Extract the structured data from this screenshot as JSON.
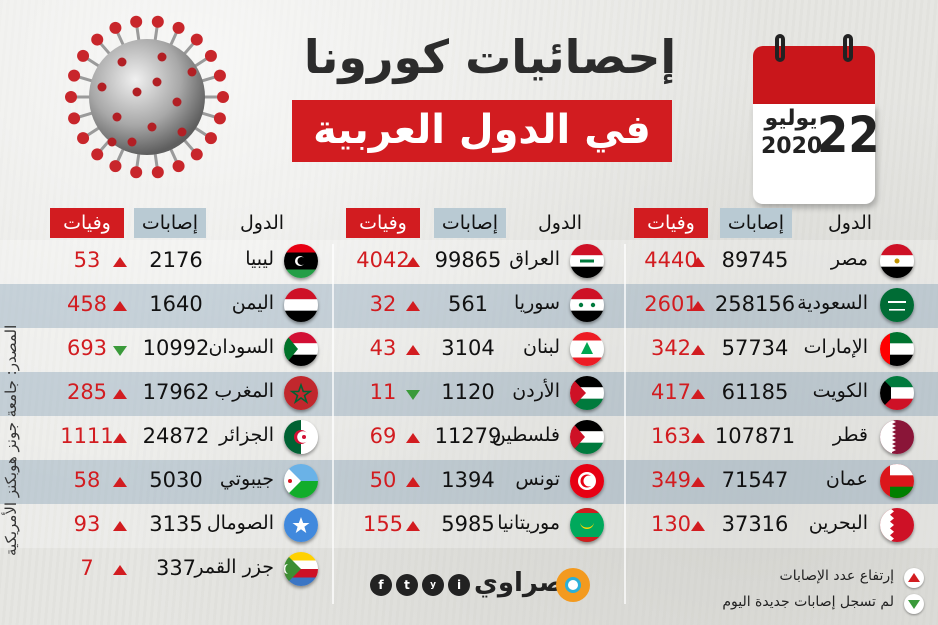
{
  "title_line1": "إحصائيات كورونا",
  "title_line2": "في الدول العربية",
  "calendar": {
    "day": "22",
    "month": "يوليو",
    "year": "2020"
  },
  "headers": {
    "country": "الدول",
    "cases": "إصابات",
    "deaths": "وفيات"
  },
  "source": "المصدر: جامعة جونز هوبكنز الأمريكية",
  "legend": {
    "up": "إرتفاع عدد الإصابات",
    "down": "لم تسجل إصابات جديدة اليوم"
  },
  "brand": {
    "name": "مصراوي",
    "social": [
      "f",
      "t",
      "y",
      "i"
    ]
  },
  "colors": {
    "accent": "#d21c20",
    "up": "#d21c20",
    "down": "#3a9a3a"
  },
  "columns": [
    [
      {
        "name": "مصر",
        "cases": "89745",
        "deaths": "4440",
        "trend": "up",
        "flag": "egypt"
      },
      {
        "name": "السعودية",
        "cases": "258156",
        "deaths": "2601",
        "trend": "up",
        "flag": "saudi"
      },
      {
        "name": "الإمارات",
        "cases": "57734",
        "deaths": "342",
        "trend": "up",
        "flag": "uae"
      },
      {
        "name": "الكويت",
        "cases": "61185",
        "deaths": "417",
        "trend": "up",
        "flag": "kuwait"
      },
      {
        "name": "قطر",
        "cases": "107871",
        "deaths": "163",
        "trend": "up",
        "flag": "qatar"
      },
      {
        "name": "عمان",
        "cases": "71547",
        "deaths": "349",
        "trend": "up",
        "flag": "oman"
      },
      {
        "name": "البحرين",
        "cases": "37316",
        "deaths": "130",
        "trend": "up",
        "flag": "bahrain"
      }
    ],
    [
      {
        "name": "العراق",
        "cases": "99865",
        "deaths": "4042",
        "trend": "up",
        "flag": "iraq"
      },
      {
        "name": "سوريا",
        "cases": "561",
        "deaths": "32",
        "trend": "up",
        "flag": "syria"
      },
      {
        "name": "لبنان",
        "cases": "3104",
        "deaths": "43",
        "trend": "up",
        "flag": "lebanon"
      },
      {
        "name": "الأردن",
        "cases": "1120",
        "deaths": "11",
        "trend": "down",
        "flag": "jordan"
      },
      {
        "name": "فلسطين",
        "cases": "11279",
        "deaths": "69",
        "trend": "up",
        "flag": "palestine"
      },
      {
        "name": "تونس",
        "cases": "1394",
        "deaths": "50",
        "trend": "up",
        "flag": "tunisia"
      },
      {
        "name": "موريتانيا",
        "cases": "5985",
        "deaths": "155",
        "trend": "up",
        "flag": "mauritania"
      }
    ],
    [
      {
        "name": "ليبيا",
        "cases": "2176",
        "deaths": "53",
        "trend": "up",
        "flag": "libya"
      },
      {
        "name": "اليمن",
        "cases": "1640",
        "deaths": "458",
        "trend": "up",
        "flag": "yemen"
      },
      {
        "name": "السودان",
        "cases": "10992",
        "deaths": "693",
        "trend": "down",
        "flag": "sudan"
      },
      {
        "name": "المغرب",
        "cases": "17962",
        "deaths": "285",
        "trend": "up",
        "flag": "morocco"
      },
      {
        "name": "الجزائر",
        "cases": "24872",
        "deaths": "1111",
        "trend": "up",
        "flag": "algeria"
      },
      {
        "name": "جيبوتي",
        "cases": "5030",
        "deaths": "58",
        "trend": "up",
        "flag": "djibouti"
      },
      {
        "name": "الصومال",
        "cases": "3135",
        "deaths": "93",
        "trend": "up",
        "flag": "somalia"
      },
      {
        "name": "جزر القمر",
        "cases": "337",
        "deaths": "7",
        "trend": "up",
        "flag": "comoros"
      }
    ]
  ]
}
